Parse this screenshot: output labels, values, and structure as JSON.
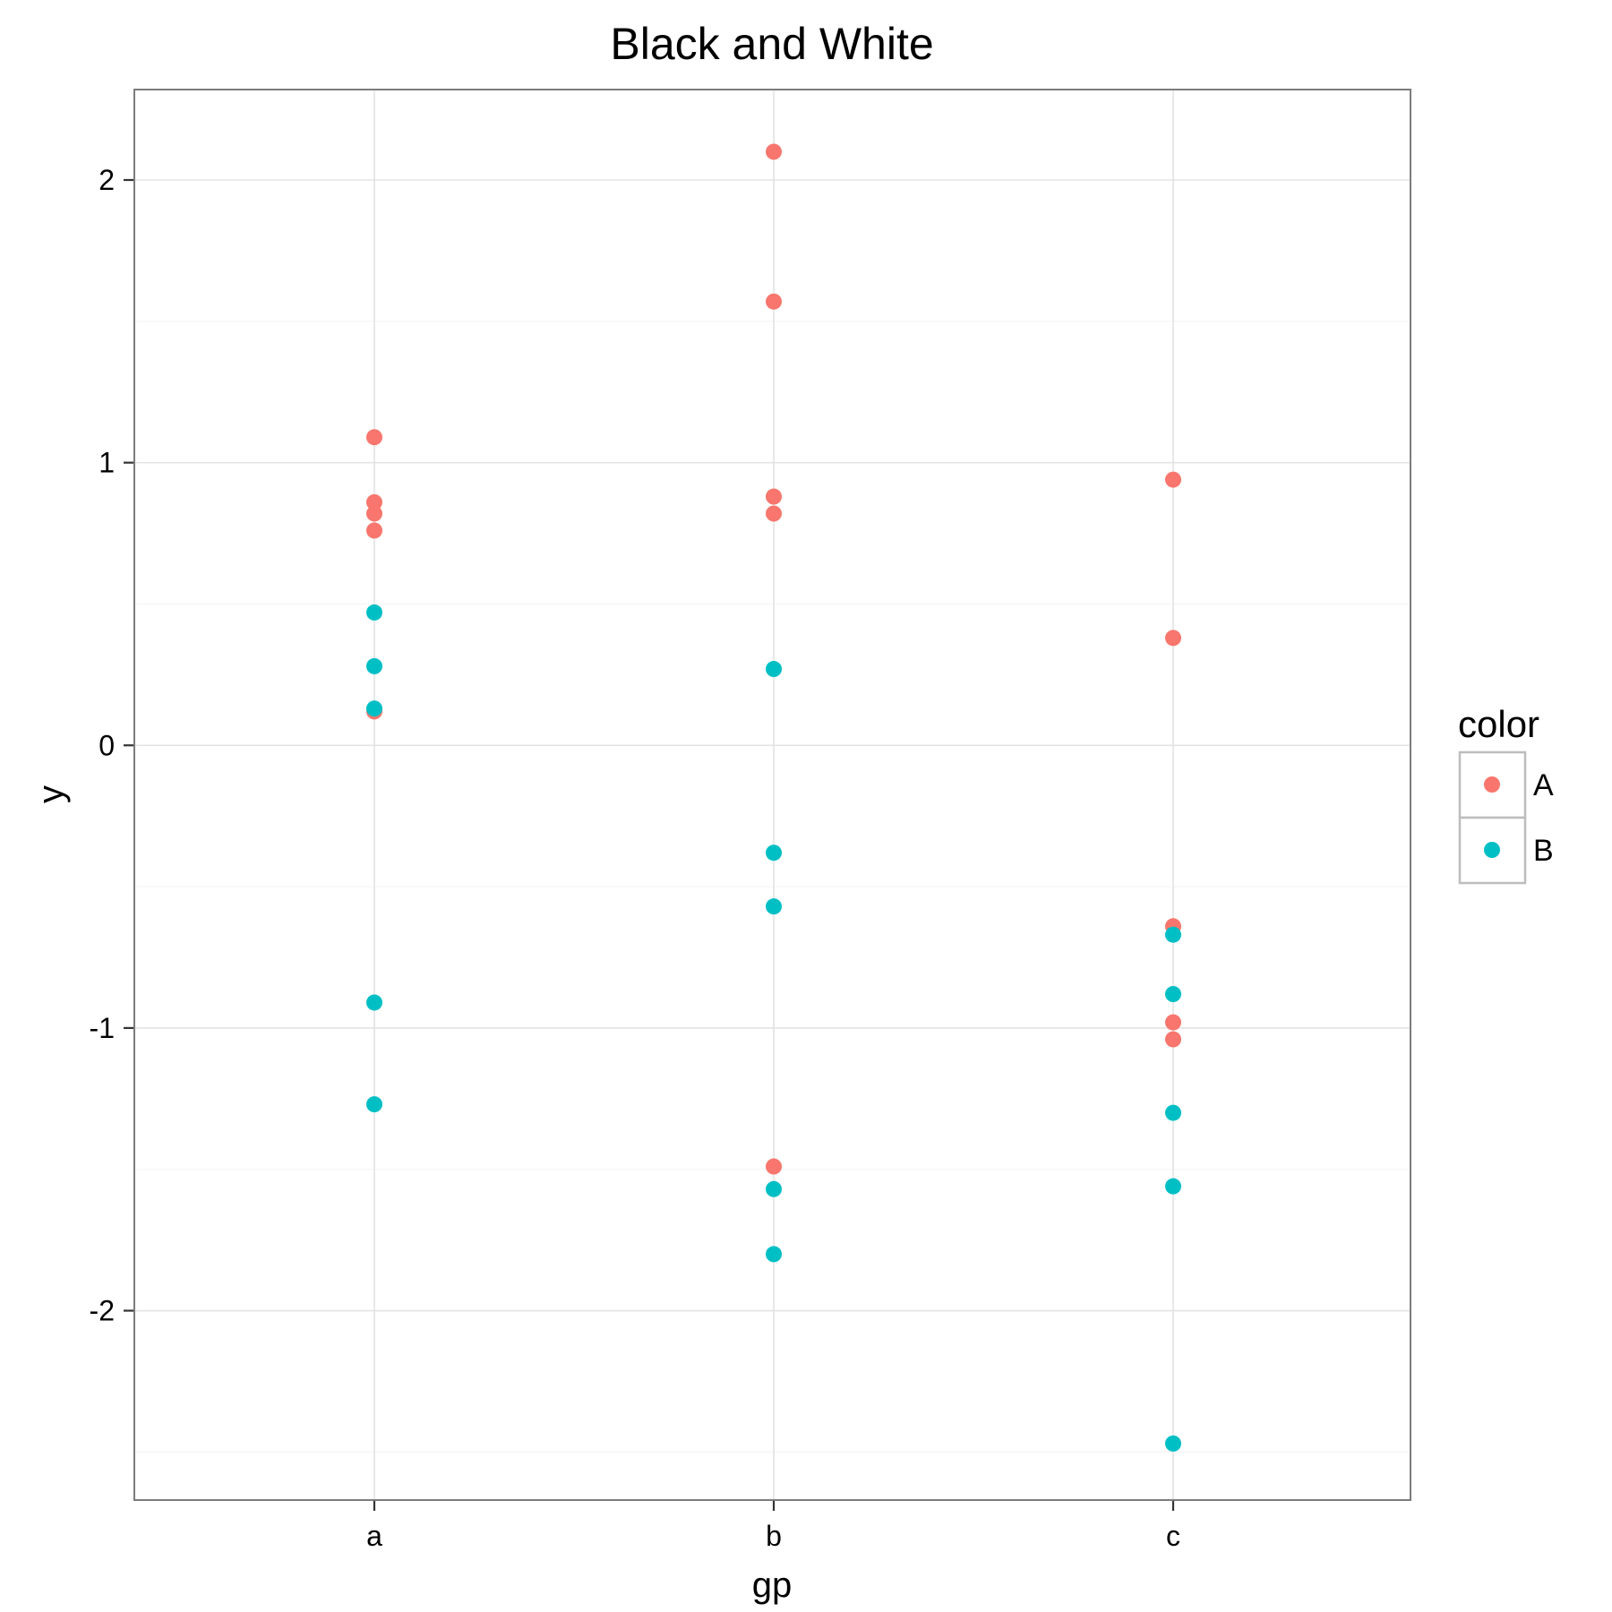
{
  "chart_data": {
    "type": "scatter",
    "title": "Black and White",
    "xlabel": "gp",
    "ylabel": "y",
    "categories": [
      "a",
      "b",
      "c"
    ],
    "ylim": [
      -2.67,
      2.32
    ],
    "yticks": [
      2,
      1,
      0,
      -1,
      -2
    ],
    "ytick_labels": [
      "2",
      "1",
      "0",
      "-1",
      "-2"
    ],
    "grid": true,
    "legend": {
      "title": "color",
      "placement": "right"
    },
    "series": [
      {
        "name": "A",
        "color": "#F8766D",
        "points": [
          {
            "x": "a",
            "y": 1.09
          },
          {
            "x": "a",
            "y": 0.86
          },
          {
            "x": "a",
            "y": 0.82
          },
          {
            "x": "a",
            "y": 0.76
          },
          {
            "x": "a",
            "y": 0.12
          },
          {
            "x": "b",
            "y": 2.1
          },
          {
            "x": "b",
            "y": 1.57
          },
          {
            "x": "b",
            "y": 0.88
          },
          {
            "x": "b",
            "y": 0.82
          },
          {
            "x": "b",
            "y": -1.49
          },
          {
            "x": "c",
            "y": 0.94
          },
          {
            "x": "c",
            "y": 0.38
          },
          {
            "x": "c",
            "y": -0.64
          },
          {
            "x": "c",
            "y": -0.98
          },
          {
            "x": "c",
            "y": -1.04
          }
        ]
      },
      {
        "name": "B",
        "color": "#00BFC4",
        "points": [
          {
            "x": "a",
            "y": 0.47
          },
          {
            "x": "a",
            "y": 0.28
          },
          {
            "x": "a",
            "y": 0.13
          },
          {
            "x": "a",
            "y": -0.91
          },
          {
            "x": "a",
            "y": -1.27
          },
          {
            "x": "b",
            "y": 0.27
          },
          {
            "x": "b",
            "y": -0.38
          },
          {
            "x": "b",
            "y": -0.57
          },
          {
            "x": "b",
            "y": -1.57
          },
          {
            "x": "b",
            "y": -1.8
          },
          {
            "x": "c",
            "y": -0.67
          },
          {
            "x": "c",
            "y": -0.88
          },
          {
            "x": "c",
            "y": -1.3
          },
          {
            "x": "c",
            "y": -1.56
          },
          {
            "x": "c",
            "y": -2.47
          }
        ]
      }
    ]
  }
}
